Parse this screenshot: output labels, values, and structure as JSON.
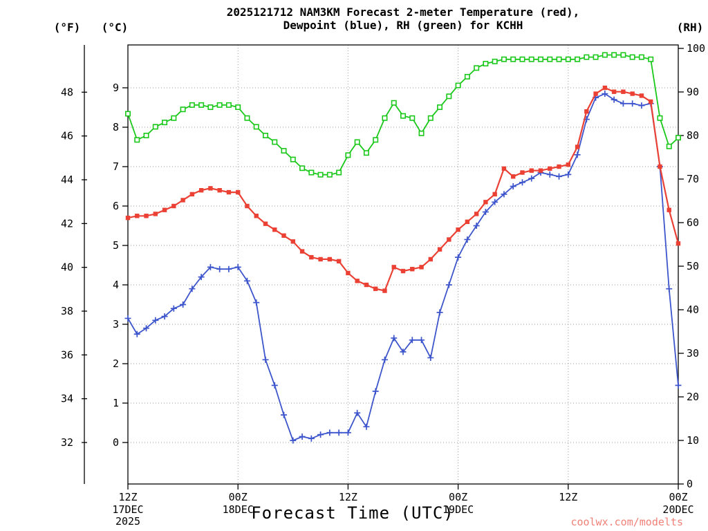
{
  "title": {
    "line1": "2025121712 NAM3KM Forecast 2-meter Temperature (red),",
    "line2": "Dewpoint (blue), RH (green) for KCHH"
  },
  "axis_headers": {
    "left_f": "(°F)",
    "left_c": "(°C)",
    "right_rh": "(RH)"
  },
  "xlabel": "Forecast Time (UTC)",
  "watermark": "coolwx.com/modelts",
  "colors": {
    "temperature": "#eb4034",
    "dewpoint": "#3d55cc",
    "rh": "#19c819",
    "watermark": "#f08078"
  },
  "chart_data": {
    "type": "line",
    "title": "2025121712 NAM3KM Forecast 2-meter Temperature (red), Dewpoint (blue), RH (green) for KCHH",
    "station": "KCHH",
    "model_run": "2025121712 NAM3KM",
    "x_start": "12Z 17DEC 2025",
    "x_interval_hours": 1,
    "x_range_hours": [
      0,
      60
    ],
    "grid": "dotted",
    "x_ticks": [
      {
        "hour": 0,
        "time": "12Z",
        "date": "17DEC",
        "year": "2025"
      },
      {
        "hour": 12,
        "time": "00Z",
        "date": "18DEC"
      },
      {
        "hour": 24,
        "time": "12Z"
      },
      {
        "hour": 36,
        "time": "00Z",
        "date": "19DEC"
      },
      {
        "hour": 48,
        "time": "12Z"
      },
      {
        "hour": 60,
        "time": "00Z",
        "date": "20DEC"
      }
    ],
    "axes": {
      "left_f": {
        "label": "(°F)",
        "ticks": [
          32,
          34,
          36,
          38,
          40,
          42,
          44,
          46,
          48
        ]
      },
      "left_c": {
        "label": "(°C)",
        "ticks": [
          0,
          1,
          2,
          3,
          4,
          5,
          6,
          7,
          8,
          9
        ]
      },
      "right_rh": {
        "label": "(RH)",
        "ticks": [
          0,
          10,
          20,
          30,
          40,
          50,
          60,
          70,
          80,
          90,
          100
        ],
        "range": [
          0,
          100
        ]
      }
    },
    "series": [
      {
        "name": "2-meter Temperature",
        "data_name": "temperature-series",
        "unit": "°C",
        "axis": "left_c",
        "color": "#eb4034",
        "marker": "filled-square",
        "values": [
          5.7,
          5.75,
          5.75,
          5.8,
          5.9,
          6.0,
          6.15,
          6.3,
          6.4,
          6.45,
          6.4,
          6.35,
          6.35,
          6.0,
          5.75,
          5.55,
          5.4,
          5.25,
          5.1,
          4.85,
          4.7,
          4.65,
          4.65,
          4.6,
          4.3,
          4.1,
          4.0,
          3.9,
          3.85,
          4.45,
          4.35,
          4.4,
          4.45,
          4.65,
          4.9,
          5.15,
          5.4,
          5.6,
          5.8,
          6.1,
          6.3,
          6.95,
          6.75,
          6.85,
          6.9,
          6.9,
          6.95,
          7.0,
          7.05,
          7.5,
          8.4,
          8.85,
          9.0,
          8.9,
          8.9,
          8.85,
          8.8,
          8.65,
          7.0,
          5.9,
          5.05
        ]
      },
      {
        "name": "Dewpoint",
        "data_name": "dewpoint-series",
        "unit": "°C",
        "axis": "left_c",
        "color": "#3d55cc",
        "marker": "plus",
        "values": [
          3.15,
          2.75,
          2.9,
          3.1,
          3.2,
          3.4,
          3.5,
          3.9,
          4.2,
          4.45,
          4.4,
          4.4,
          4.45,
          4.1,
          3.55,
          2.1,
          1.45,
          0.7,
          0.05,
          0.15,
          0.1,
          0.2,
          0.25,
          0.25,
          0.25,
          0.75,
          0.4,
          1.3,
          2.1,
          2.65,
          2.3,
          2.6,
          2.6,
          2.15,
          3.3,
          4.0,
          4.7,
          5.15,
          5.5,
          5.85,
          6.1,
          6.3,
          6.5,
          6.6,
          6.7,
          6.85,
          6.8,
          6.75,
          6.8,
          7.3,
          8.2,
          8.75,
          8.85,
          8.7,
          8.6,
          8.6,
          8.55,
          8.6,
          7.0,
          3.9,
          1.45
        ]
      },
      {
        "name": "RH",
        "data_name": "rh-series",
        "unit": "%",
        "axis": "right_rh",
        "color": "#19c819",
        "marker": "open-square",
        "values": [
          85,
          79,
          80,
          82,
          83,
          84,
          86,
          87,
          87,
          86.5,
          87,
          87,
          86.5,
          84,
          82,
          80,
          78.5,
          76.5,
          74.5,
          72.5,
          71.5,
          71,
          71,
          71.5,
          75.5,
          78.5,
          76,
          79,
          84,
          87.5,
          84.5,
          84,
          80.5,
          84,
          86.5,
          89,
          91.5,
          93.5,
          95.5,
          96.5,
          97,
          97.5,
          97.5,
          97.5,
          97.5,
          97.5,
          97.5,
          97.5,
          97.5,
          97.5,
          98,
          98,
          98.5,
          98.5,
          98.5,
          98,
          98,
          97.5,
          84,
          77.5,
          79.5
        ]
      }
    ]
  }
}
